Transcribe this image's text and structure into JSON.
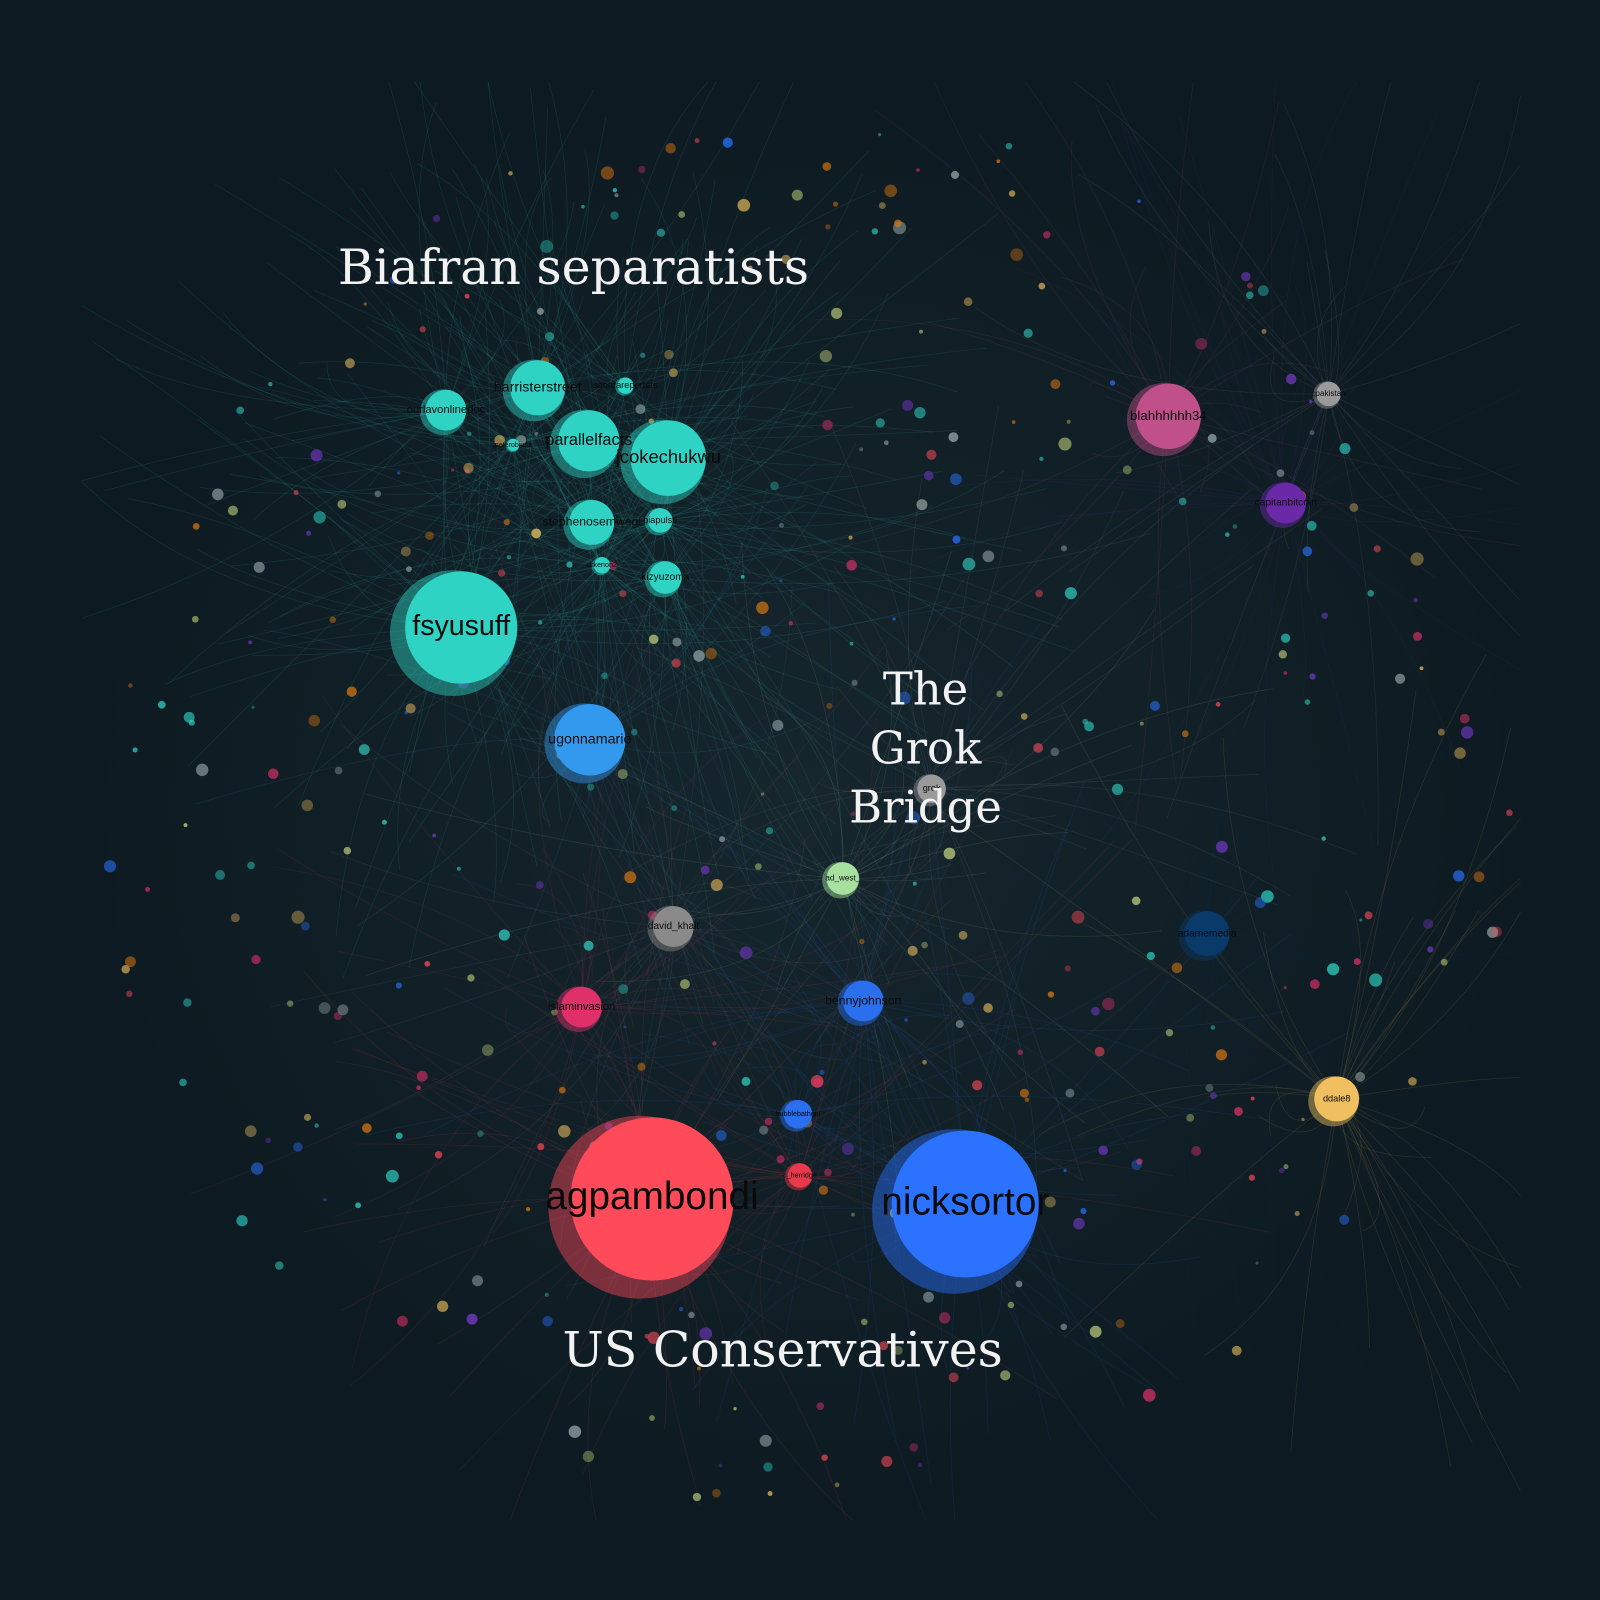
{
  "cluster_labels": {
    "biafran": "Biafran separatists",
    "grok_bridge": [
      "The",
      "Grok",
      "Bridge"
    ],
    "us_conservatives": "US Conservatives"
  },
  "nodes": [
    {
      "label": "fsyusuff"
    },
    {
      "label": "barristerstreet"
    },
    {
      "label": "ourlavonlinedoc"
    },
    {
      "label": "parallelfacts"
    },
    {
      "label": "jcokechukwu"
    },
    {
      "label": "saharareporters"
    },
    {
      "label": "stephenosemwegi"
    },
    {
      "label": "biapulse"
    },
    {
      "label": "kizyuzoma"
    },
    {
      "label": "peterobiusa"
    },
    {
      "label": "drkenon2"
    },
    {
      "label": "ugonnamario"
    },
    {
      "label": "blahhhhhh34"
    },
    {
      "label": "capitanbitcoin"
    },
    {
      "label": "cpakistan"
    },
    {
      "label": "agpambondi"
    },
    {
      "label": "nicksortor"
    },
    {
      "label": "bennyjohnson"
    },
    {
      "label": "islaminvasion"
    },
    {
      "label": "david_khalt"
    },
    {
      "label": "bubblebathgirl"
    },
    {
      "label": "c_herridge"
    },
    {
      "label": "ddale8"
    },
    {
      "label": "adamemedia"
    },
    {
      "label": "grok"
    },
    {
      "label": "ad_west_"
    }
  ]
}
